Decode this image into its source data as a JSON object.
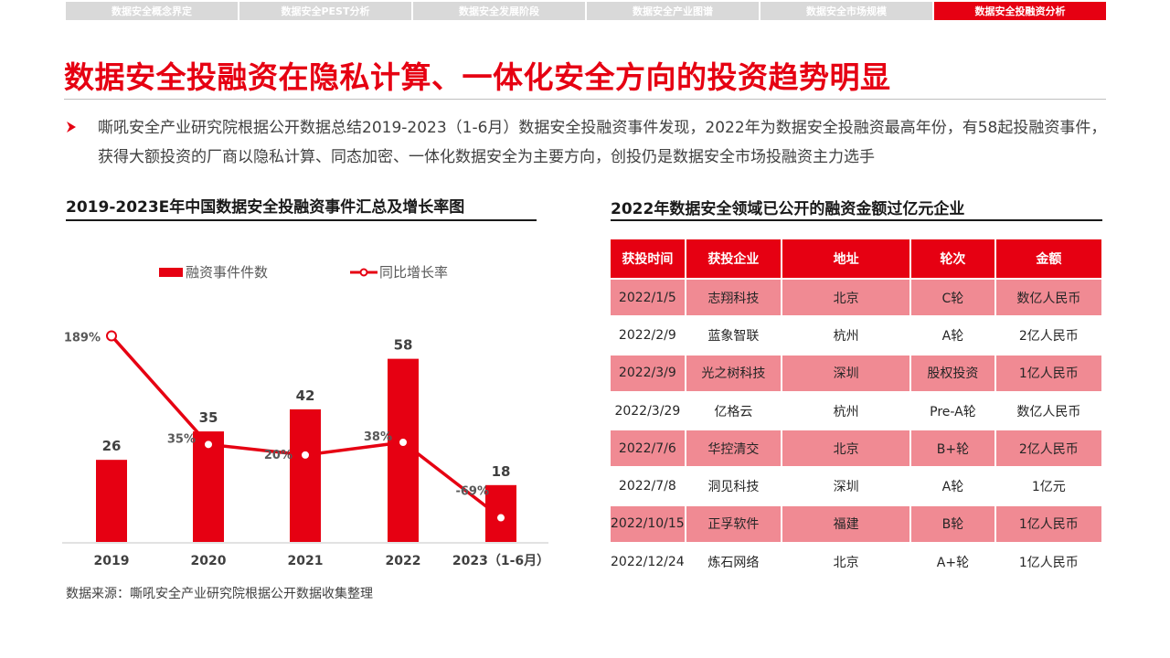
{
  "tabs": [
    {
      "label": "数据安全概念界定",
      "active": false
    },
    {
      "label": "数据安全PEST分析",
      "active": false
    },
    {
      "label": "数据安全发展阶段",
      "active": false
    },
    {
      "label": "数据安全产业图谱",
      "active": false
    },
    {
      "label": "数据安全市场规模",
      "active": false
    },
    {
      "label": "数据安全投融资分析",
      "active": true
    }
  ],
  "title": "数据安全投融资在隐私计算、一体化安全方向的投资趋势明显",
  "intro": "嘶吼安全产业研究院根据公开数据总结2019-2023（1-6月）数据安全投融资事件发现，2022年为数据安全投融资最高年份，有58起投融资事件，获得大额投资的厂商以隐私计算、同态加密、一体化数据安全为主要方向，创投仍是数据安全市场投融资主力选手",
  "colors": {
    "accent": "#e60012",
    "row_highlight": "#f08a93"
  },
  "left_section": {
    "title": "2019-2023E年中国数据安全投融资事件汇总及增长率图"
  },
  "chart_data": {
    "type": "bar+line",
    "categories": [
      "2019",
      "2020",
      "2021",
      "2022",
      "2023（1-6月）"
    ],
    "series": [
      {
        "name": "融资事件件数",
        "type": "bar",
        "values": [
          26,
          35,
          42,
          58,
          18
        ],
        "labels": [
          "26",
          "35",
          "42",
          "58",
          "18"
        ]
      },
      {
        "name": "同比增长率",
        "type": "line",
        "values": [
          189,
          35,
          20,
          38,
          -69
        ],
        "labels": [
          "189%",
          "35%",
          "20%",
          "38%",
          "-69%"
        ]
      }
    ],
    "legend_position": "top",
    "grid": false
  },
  "source": "数据来源：嘶吼安全产业研究院根据公开数据收集整理",
  "right_section": {
    "title": "2022年数据安全领域已公开的融资金额过亿元企业",
    "headers": [
      "获投时间",
      "获投企业",
      "地址",
      "轮次",
      "金额"
    ],
    "rows": [
      [
        "2022/1/5",
        "志翔科技",
        "北京",
        "C轮",
        "数亿人民币"
      ],
      [
        "2022/2/9",
        "蓝象智联",
        "杭州",
        "A轮",
        "2亿人民币"
      ],
      [
        "2022/3/9",
        "光之树科技",
        "深圳",
        "股权投资",
        "1亿人民币"
      ],
      [
        "2022/3/29",
        "亿格云",
        "杭州",
        "Pre-A轮",
        "数亿人民币"
      ],
      [
        "2022/7/6",
        "华控清交",
        "北京",
        "B+轮",
        "2亿人民币"
      ],
      [
        "2022/7/8",
        "洞见科技",
        "深圳",
        "A轮",
        "1亿元"
      ],
      [
        "2022/10/15",
        "正孚软件",
        "福建",
        "B轮",
        "1亿人民币"
      ],
      [
        "2022/12/24",
        "炼石网络",
        "北京",
        "A+轮",
        "1亿人民币"
      ]
    ]
  }
}
